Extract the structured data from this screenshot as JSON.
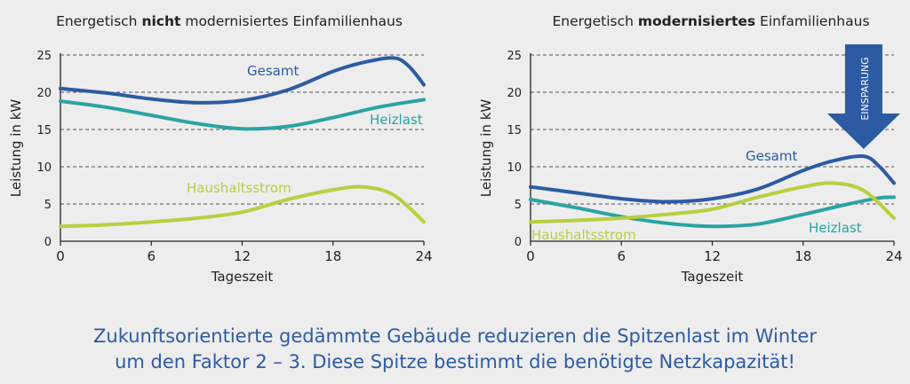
{
  "caption": {
    "line1": "Zukunftsorientierte gedämmte Gebäude reduzieren die Spitzenlast im Winter",
    "line2": "um den Faktor 2 – 3. Diese Spitze bestimmt die benötigte Netzkapazität!"
  },
  "colors": {
    "gesamt": "#2d5ba3",
    "heizlast": "#2aa3a3",
    "haushaltsstrom": "#b9cf3f",
    "arrow": "#2d5ba3",
    "grid": "#555555",
    "axis": "#222222",
    "text": "#222222"
  },
  "chart_data": [
    {
      "type": "line",
      "title_parts": [
        "Energetisch ",
        "nicht",
        " modernisiertes Einfamilienhaus"
      ],
      "xlabel": "Tageszeit",
      "ylabel": "Leistung in kW",
      "xlim": [
        0,
        24
      ],
      "ylim": [
        0,
        25
      ],
      "xticks": [
        0,
        6,
        12,
        18,
        24
      ],
      "yticks": [
        0,
        5,
        10,
        15,
        20,
        25
      ],
      "grid": "dashed-horizontal",
      "series": [
        {
          "name": "Gesamt",
          "color_key": "gesamt",
          "x": [
            0,
            3,
            6,
            9,
            12,
            15,
            18,
            20,
            22,
            23,
            24
          ],
          "y": [
            20.5,
            19.9,
            19.1,
            18.6,
            18.9,
            20.3,
            22.8,
            24.0,
            24.6,
            23.5,
            21.0
          ]
        },
        {
          "name": "Heizlast",
          "color_key": "heizlast",
          "x": [
            0,
            3,
            6,
            9,
            12,
            15,
            18,
            21,
            24
          ],
          "y": [
            18.8,
            18.0,
            16.9,
            15.8,
            15.1,
            15.4,
            16.6,
            18.0,
            19.0
          ]
        },
        {
          "name": "Haushaltsstrom",
          "color_key": "haushaltsstrom",
          "x": [
            0,
            3,
            6,
            9,
            12,
            15,
            18,
            20,
            22,
            24
          ],
          "y": [
            2.0,
            2.2,
            2.6,
            3.1,
            3.9,
            5.6,
            6.9,
            7.3,
            6.2,
            2.6
          ]
        }
      ]
    },
    {
      "type": "line",
      "title_parts": [
        "Energetisch ",
        "modernisiertes",
        " Einfamilienhaus"
      ],
      "xlabel": "Tageszeit",
      "ylabel": "Leistung in kW",
      "xlim": [
        0,
        24
      ],
      "ylim": [
        0,
        25
      ],
      "xticks": [
        0,
        6,
        12,
        18,
        24
      ],
      "yticks": [
        0,
        5,
        10,
        15,
        20,
        25
      ],
      "grid": "dashed-horizontal",
      "annotation": "EINSPARUNG",
      "series": [
        {
          "name": "Gesamt",
          "color_key": "gesamt",
          "x": [
            0,
            3,
            6,
            9,
            12,
            15,
            18,
            20,
            22,
            23,
            24
          ],
          "y": [
            7.3,
            6.5,
            5.7,
            5.3,
            5.7,
            7.0,
            9.5,
            10.8,
            11.4,
            10.1,
            7.8
          ]
        },
        {
          "name": "Heizlast",
          "color_key": "heizlast",
          "x": [
            0,
            3,
            6,
            9,
            12,
            15,
            18,
            21,
            23,
            24
          ],
          "y": [
            5.6,
            4.5,
            3.3,
            2.4,
            2.0,
            2.3,
            3.6,
            5.0,
            5.8,
            5.9
          ]
        },
        {
          "name": "Haushaltsstrom",
          "color_key": "haushaltsstrom",
          "x": [
            0,
            3,
            6,
            9,
            12,
            15,
            18,
            20,
            22,
            24
          ],
          "y": [
            2.6,
            2.8,
            3.1,
            3.6,
            4.3,
            5.9,
            7.3,
            7.8,
            6.8,
            3.1
          ]
        }
      ]
    }
  ]
}
